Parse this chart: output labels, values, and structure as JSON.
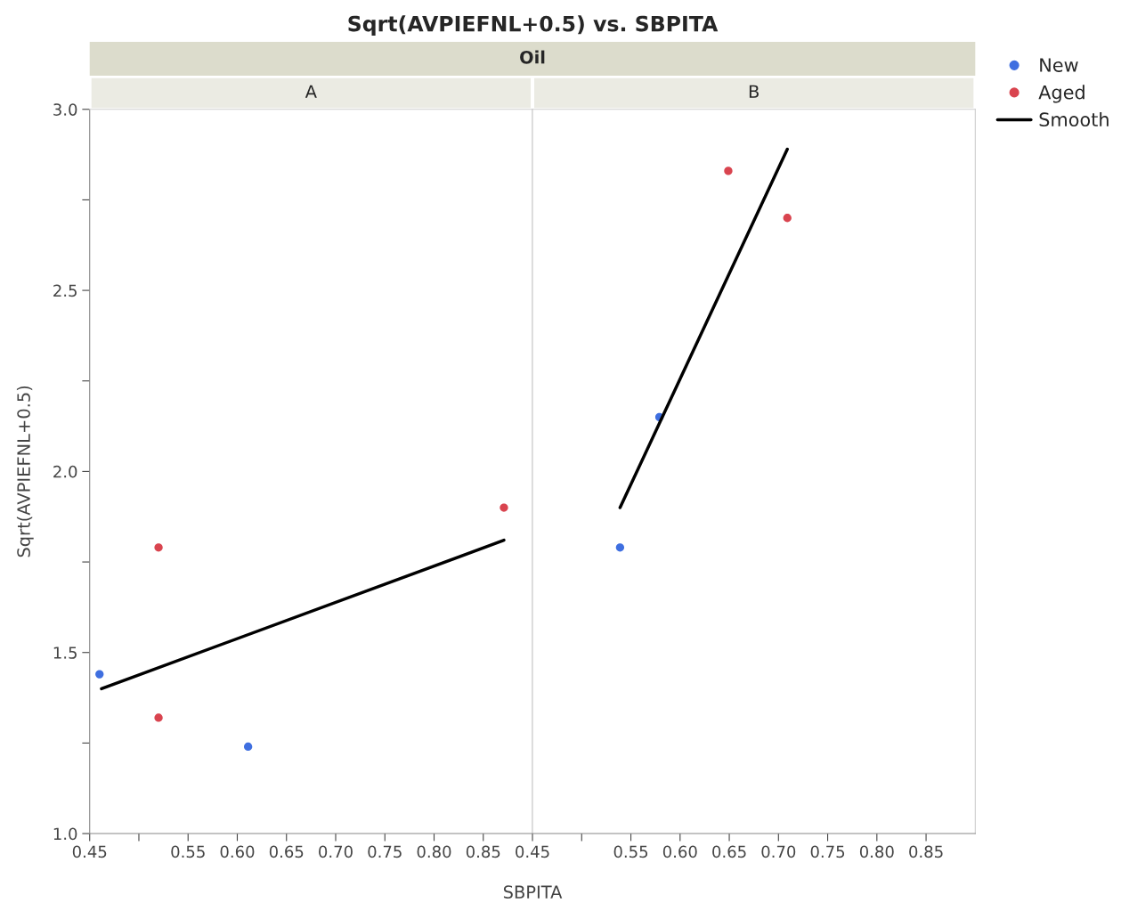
{
  "chart_data": [
    {
      "type": "scatter",
      "title": "Sqrt(AVPIEFNL+0.5) vs. SBPITA",
      "subtitle": "Oil",
      "annotations": [
        "A"
      ],
      "xlabel": "SBPITA",
      "ylabel": "Sqrt(AVPIEFNL+0.5)",
      "legend": "right",
      "marker": "circle",
      "grid": false,
      "xlim": [
        0.45,
        0.9
      ],
      "xticks": [
        0.45,
        {
          "value": 0.5,
          "label": null
        },
        0.55,
        "0.60",
        0.65,
        "0.70",
        0.75,
        "0.80",
        0.85
      ],
      "ylim": [
        1.0,
        3.0
      ],
      "yticks": [
        "1.0",
        {
          "value": 1.25,
          "label": null
        },
        1.5,
        {
          "value": 1.75,
          "label": null
        },
        "2.0",
        {
          "value": 2.25,
          "label": null
        },
        2.5,
        {
          "value": 2.75,
          "label": null
        },
        "3.0"
      ],
      "series": [
        {
          "name": "New",
          "color": "#3f6fe0",
          "x": [
            0.46,
            0.611
          ],
          "values": [
            1.44,
            1.24
          ]
        },
        {
          "name": "Aged",
          "color": "#d9444f",
          "x": [
            0.52,
            0.52,
            0.871
          ],
          "values": [
            1.79,
            1.32,
            1.9
          ]
        },
        {
          "name": "Smooth",
          "type": "line",
          "marker": "none",
          "color": "#000000",
          "x": [
            0.462,
            0.871
          ],
          "values": [
            1.4,
            1.81
          ]
        }
      ]
    },
    {
      "type": "scatter",
      "annotations": [
        "B"
      ],
      "marker": "circle",
      "grid": false,
      "tick_labels": "x",
      "xlim": [
        0.45,
        0.9
      ],
      "xticks": [
        0.45,
        {
          "value": 0.5,
          "label": null
        },
        0.55,
        "0.60",
        0.65,
        "0.70",
        0.75,
        "0.80",
        0.85
      ],
      "ylim": [
        1.0,
        3.0
      ],
      "yticks": [
        1.0,
        1.25,
        1.5,
        1.75,
        2.0,
        2.25,
        2.5,
        2.75,
        3.0
      ],
      "series": [
        {
          "color": "#3f6fe0",
          "x": [
            0.539,
            0.579
          ],
          "values": [
            1.79,
            2.15
          ]
        },
        {
          "color": "#d9444f",
          "x": [
            0.649,
            0.709
          ],
          "values": [
            2.83,
            2.7
          ]
        },
        {
          "type": "line",
          "marker": "none",
          "color": "#000000",
          "x": [
            0.539,
            0.709
          ],
          "values": [
            1.9,
            2.89
          ]
        }
      ]
    }
  ]
}
